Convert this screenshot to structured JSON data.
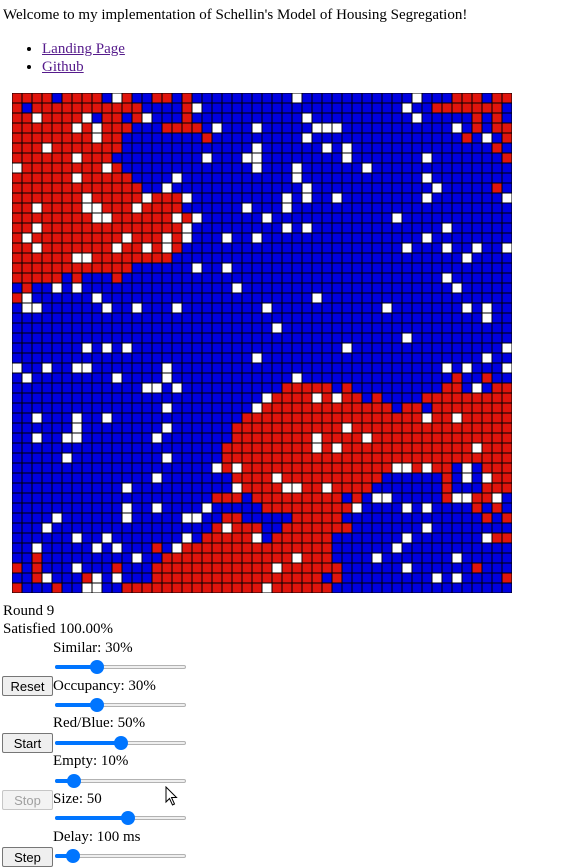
{
  "intro": "Welcome to my implementation of Schellin's Model of Housing Segregation!",
  "links": [
    {
      "label": "Landing Page"
    },
    {
      "label": "Github"
    }
  ],
  "grid": {
    "size": 50,
    "colors": {
      "red": "#e0140c",
      "blue": "#0000e0",
      "empty": "#ffffff",
      "border": "#000000"
    }
  },
  "status": {
    "round": "Round 9",
    "satisfied": "Satisfied 100.00%"
  },
  "controls": {
    "similar": {
      "label": "Similar: 30%",
      "value": 0.3
    },
    "occupancy": {
      "label": "Occupancy: 30%",
      "value": 0.3
    },
    "redblue": {
      "label": "Red/Blue: 50%",
      "value": 0.5
    },
    "empty": {
      "label": "Empty: 10%",
      "value": 0.1
    },
    "size": {
      "label": "Size: 50",
      "value": 0.56
    },
    "delay": {
      "label": "Delay: 100 ms",
      "value": 0.09
    }
  },
  "buttons": {
    "reset": "Reset",
    "start": "Start",
    "stop": "Stop",
    "step": "Step"
  }
}
